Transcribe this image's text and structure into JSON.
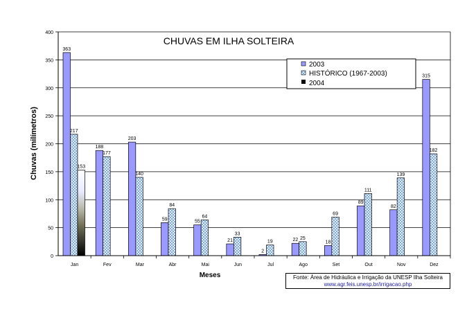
{
  "chart_data": {
    "type": "bar",
    "title": "CHUVAS EM ILHA SOLTEIRA",
    "xlabel": "Meses",
    "ylabel": "Chuvas (milímetros)",
    "ylim": [
      0,
      400
    ],
    "yticks": [
      "0",
      "50",
      "100",
      "150",
      "200",
      "250",
      "300",
      "350",
      "400"
    ],
    "categories": [
      "Jan",
      "Fev",
      "Mar",
      "Abr",
      "Mai",
      "Jun",
      "Jul",
      "Ago",
      "Set",
      "Out",
      "Nov",
      "Dez"
    ],
    "series": [
      {
        "name": "2003",
        "color": "#9999ff",
        "values": [
          363,
          188,
          203,
          59,
          55,
          21,
          2,
          22,
          18,
          89,
          82,
          315
        ],
        "labels": [
          "363",
          "188",
          "203",
          "59",
          "55",
          "21",
          "2",
          "22",
          "18",
          "89",
          "82",
          "315"
        ]
      },
      {
        "name": "HISTÓRICO (1967-2003)",
        "color": "#99ccff",
        "values": [
          217,
          177,
          140,
          84,
          64,
          33,
          19,
          25,
          69,
          111,
          139,
          182
        ],
        "labels": [
          "217",
          "177",
          "140",
          "84",
          "64",
          "33",
          "19",
          "25",
          "69",
          "111",
          "139",
          "182"
        ]
      },
      {
        "name": "2004",
        "color": "#000000",
        "values": [
          153,
          null,
          null,
          null,
          null,
          null,
          null,
          null,
          null,
          null,
          null,
          null
        ],
        "labels": [
          "153",
          "",
          "",
          "",
          "",
          "",
          "",
          "",
          "",
          "",
          "",
          ""
        ]
      }
    ],
    "grid": true,
    "legend": "top-right"
  },
  "source": {
    "line1": "Fonte: Área de Hidráulica e Irrigação da UNESP Ilha Solteira",
    "line2": "www.agr.feis.unesp.br/irrigacao.php"
  }
}
